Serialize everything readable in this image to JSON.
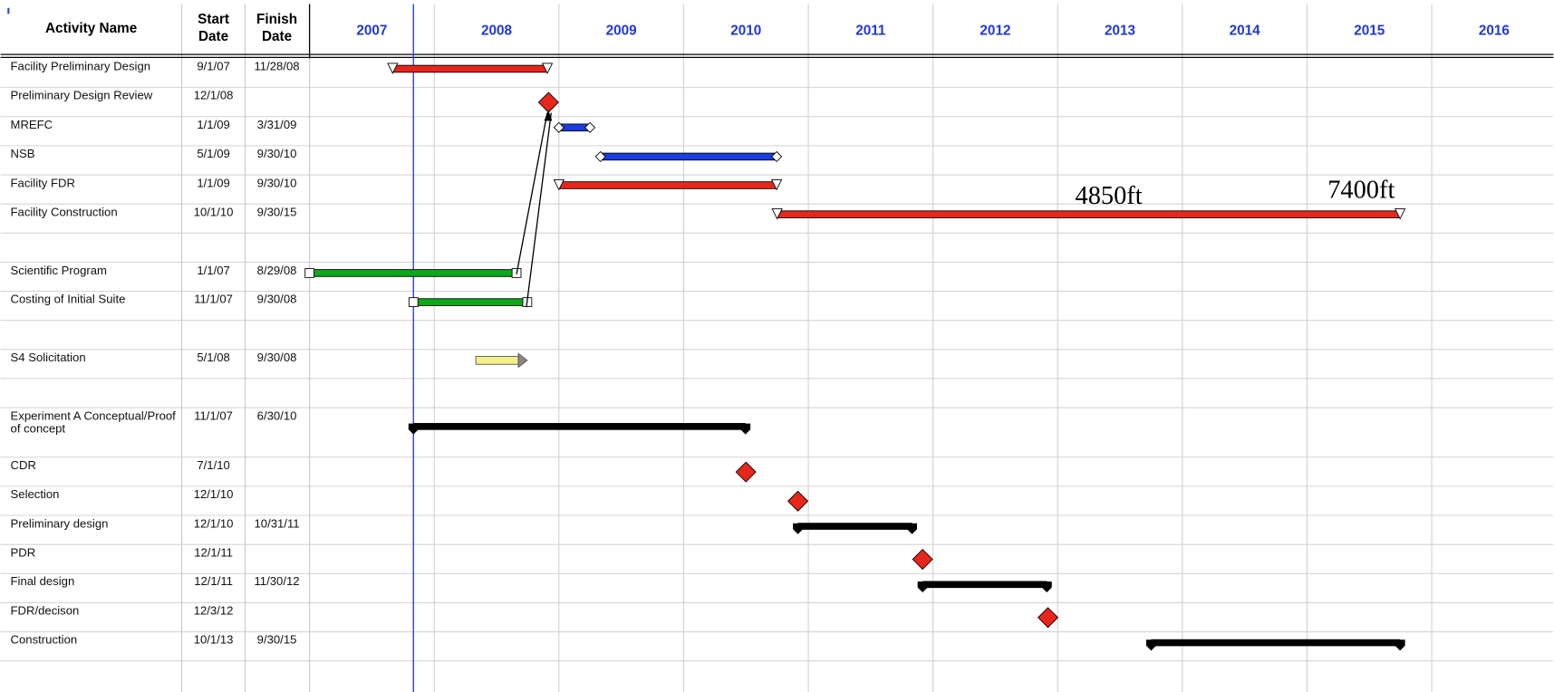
{
  "chart_data": {
    "type": "gantt",
    "columns": [
      "Activity Name",
      "Start Date",
      "Finish Date"
    ],
    "years": [
      "2007",
      "2008",
      "2009",
      "2010",
      "2011",
      "2012",
      "2013",
      "2014",
      "2015",
      "2016"
    ],
    "tasks": [
      {
        "name": "Facility Preliminary Design",
        "start": "9/1/07",
        "finish": "11/28/08",
        "style": "triangle",
        "color": "#e8261c"
      },
      {
        "name": "Preliminary Design Review",
        "start": "12/1/08",
        "style": "milestone",
        "color": "#e8261c"
      },
      {
        "name": "MREFC",
        "start": "1/1/09",
        "finish": "3/31/09",
        "style": "diamond-ends",
        "color": "#1a3de0"
      },
      {
        "name": "NSB",
        "start": "5/1/09",
        "finish": "9/30/10",
        "style": "diamond-ends",
        "color": "#1a3de0"
      },
      {
        "name": "Facility FDR",
        "start": "1/1/09",
        "finish": "9/30/10",
        "style": "triangle",
        "color": "#e8261c"
      },
      {
        "name": "Facility Construction",
        "start": "10/1/10",
        "finish": "9/30/15",
        "style": "triangle",
        "color": "#e8261c"
      },
      null,
      {
        "name": "Scientific Program",
        "start": "1/1/07",
        "finish": "8/29/08",
        "style": "square-ends",
        "color": "#0ca81a"
      },
      {
        "name": "Costing of Initial Suite",
        "start": "11/1/07",
        "finish": "9/30/08",
        "style": "square-ends",
        "color": "#0ca81a"
      },
      null,
      {
        "name": "S4 Solicitation",
        "start": "5/1/08",
        "finish": "9/30/08",
        "style": "arrow",
        "color": "#f4f08a"
      },
      null,
      {
        "name": "Experiment A Conceptual/Proof of concept",
        "start": "11/1/07",
        "finish": "6/30/10",
        "style": "bracket",
        "color": "#000000"
      },
      {
        "name": "CDR",
        "start": "7/1/10",
        "style": "milestone",
        "color": "#e8261c"
      },
      {
        "name": "Selection",
        "start": "12/1/10",
        "style": "milestone",
        "color": "#e8261c"
      },
      {
        "name": "Preliminary design",
        "start": "12/1/10",
        "finish": "10/31/11",
        "style": "bracket",
        "color": "#000000"
      },
      {
        "name": "PDR",
        "start": "12/1/11",
        "style": "milestone",
        "color": "#e8261c"
      },
      {
        "name": "Final design",
        "start": "12/1/11",
        "finish": "11/30/12",
        "style": "bracket",
        "color": "#000000"
      },
      {
        "name": "FDR/decison",
        "start": "12/3/12",
        "style": "milestone",
        "color": "#e8261c"
      },
      {
        "name": "Construction",
        "start": "10/1/13",
        "finish": "9/30/15",
        "style": "bracket",
        "color": "#000000"
      }
    ],
    "annotations": [
      "4850ft",
      "7400ft"
    ],
    "today_color": "#2a4be0"
  }
}
